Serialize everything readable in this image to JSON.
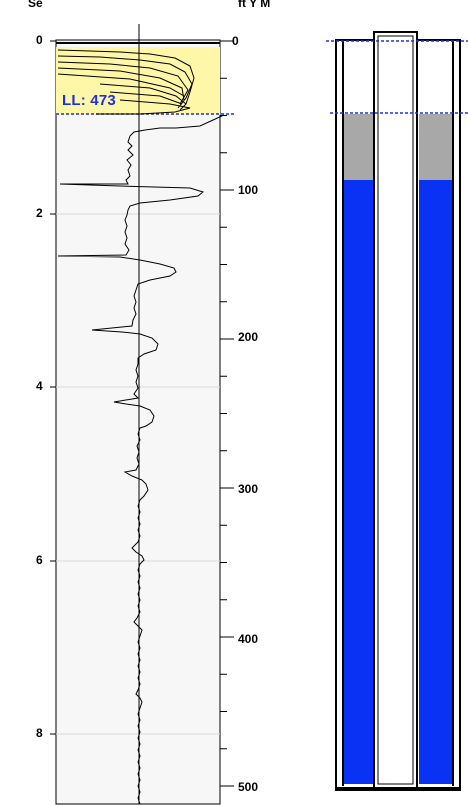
{
  "log": {
    "left_axis_unit": "Se",
    "right_axis_unit": "ft Y M",
    "left_ticks": [
      "0",
      "2",
      "4",
      "6",
      "8"
    ],
    "right_ticks": [
      "0",
      "100",
      "200",
      "300",
      "400",
      "500"
    ],
    "liquid_level_label": "LL: 473",
    "highlight_color": "#fff7a8",
    "trace_color": "#000000",
    "level_line_color": "#1f2fe0"
  },
  "well": {
    "fluid_color": "#0a32f5",
    "gas_color": "#a8a8a8",
    "tubing_color": "#ffffff",
    "marker_color": "#1f2fe0"
  }
}
